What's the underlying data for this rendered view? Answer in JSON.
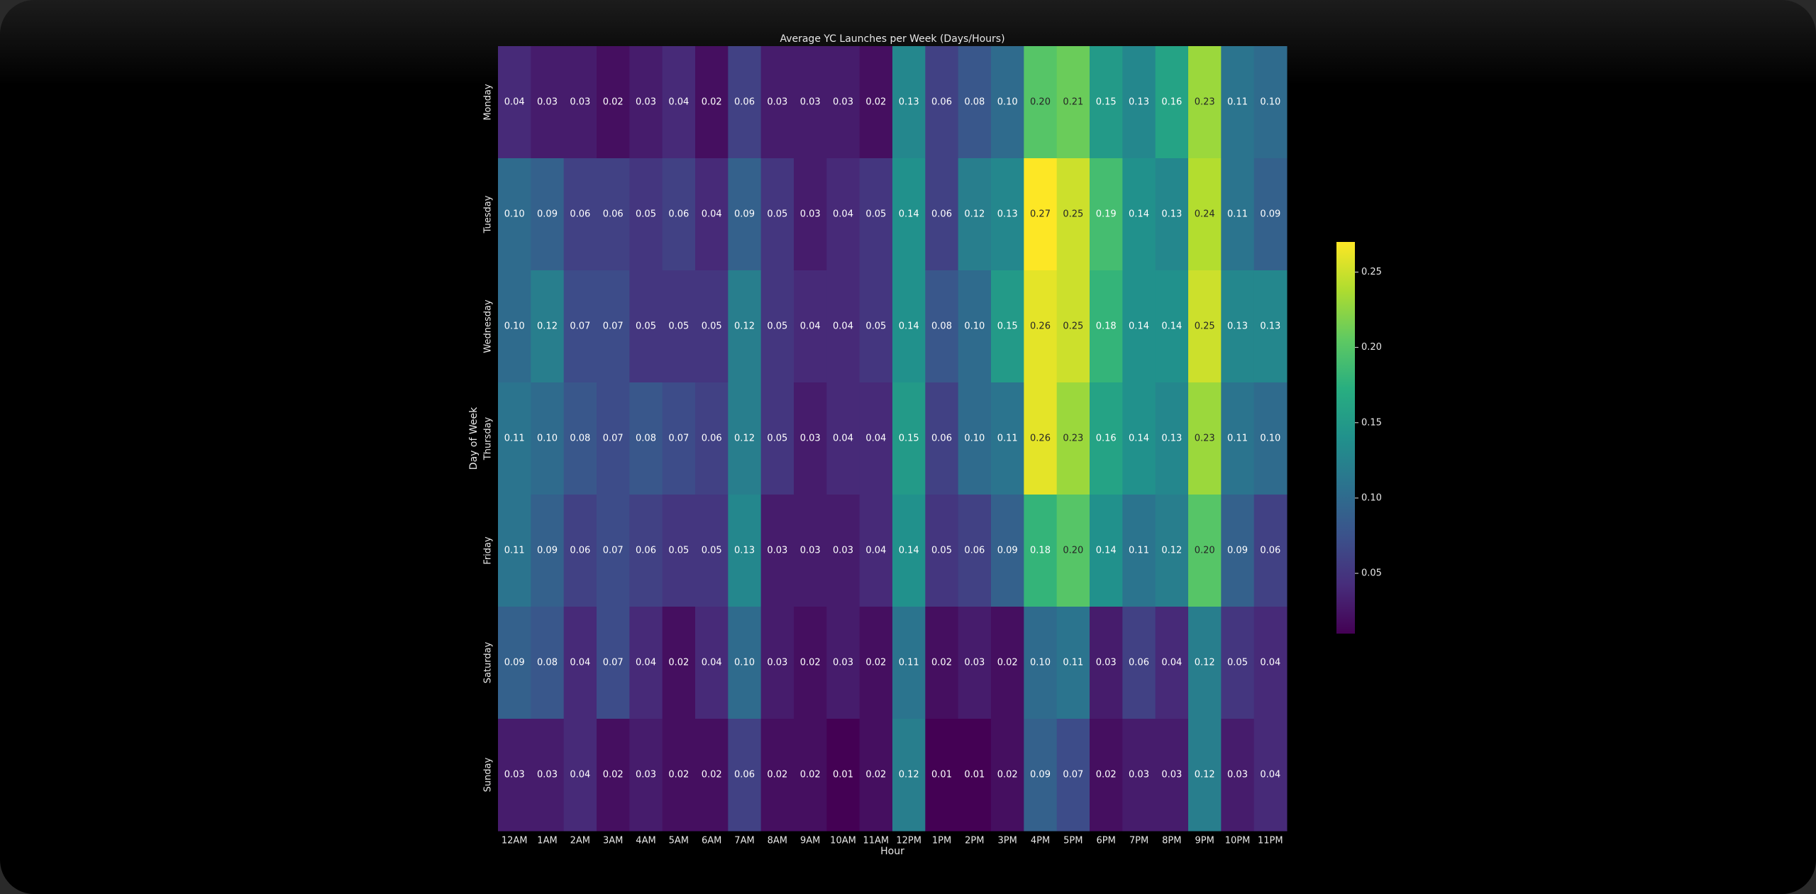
{
  "chart_data": {
    "type": "heatmap",
    "title": "Average YC Launches per Week (Days/Hours)",
    "x_label": "Hour",
    "y_label": "Day of Week",
    "colormap": "viridis",
    "categories": [
      "12AM",
      "1AM",
      "2AM",
      "3AM",
      "4AM",
      "5AM",
      "6AM",
      "7AM",
      "8AM",
      "9AM",
      "10AM",
      "11AM",
      "12PM",
      "1PM",
      "2PM",
      "3PM",
      "4PM",
      "5PM",
      "6PM",
      "7PM",
      "8PM",
      "9PM",
      "10PM",
      "11PM"
    ],
    "rows": [
      "Monday",
      "Tuesday",
      "Wednesday",
      "Thursday",
      "Friday",
      "Saturday",
      "Sunday"
    ],
    "values": [
      [
        0.04,
        0.03,
        0.03,
        0.02,
        0.03,
        0.04,
        0.02,
        0.06,
        0.03,
        0.03,
        0.03,
        0.02,
        0.13,
        0.06,
        0.08,
        0.1,
        0.2,
        0.21,
        0.15,
        0.13,
        0.16,
        0.23,
        0.11,
        0.1
      ],
      [
        0.1,
        0.09,
        0.06,
        0.06,
        0.05,
        0.06,
        0.04,
        0.09,
        0.05,
        0.03,
        0.04,
        0.05,
        0.14,
        0.06,
        0.12,
        0.13,
        0.27,
        0.25,
        0.19,
        0.14,
        0.13,
        0.24,
        0.11,
        0.09
      ],
      [
        0.1,
        0.12,
        0.07,
        0.07,
        0.05,
        0.05,
        0.05,
        0.12,
        0.05,
        0.04,
        0.04,
        0.05,
        0.14,
        0.08,
        0.1,
        0.15,
        0.26,
        0.25,
        0.18,
        0.14,
        0.14,
        0.25,
        0.13,
        0.13
      ],
      [
        0.11,
        0.1,
        0.08,
        0.07,
        0.08,
        0.07,
        0.06,
        0.12,
        0.05,
        0.03,
        0.04,
        0.04,
        0.15,
        0.06,
        0.1,
        0.11,
        0.26,
        0.23,
        0.16,
        0.14,
        0.13,
        0.23,
        0.11,
        0.1
      ],
      [
        0.11,
        0.09,
        0.06,
        0.07,
        0.06,
        0.05,
        0.05,
        0.13,
        0.03,
        0.03,
        0.03,
        0.04,
        0.14,
        0.05,
        0.06,
        0.09,
        0.18,
        0.2,
        0.14,
        0.11,
        0.12,
        0.2,
        0.09,
        0.06
      ],
      [
        0.09,
        0.08,
        0.04,
        0.07,
        0.04,
        0.02,
        0.04,
        0.1,
        0.03,
        0.02,
        0.03,
        0.02,
        0.11,
        0.02,
        0.03,
        0.02,
        0.1,
        0.11,
        0.03,
        0.06,
        0.04,
        0.12,
        0.05,
        0.04
      ],
      [
        0.03,
        0.03,
        0.04,
        0.02,
        0.03,
        0.02,
        0.02,
        0.06,
        0.02,
        0.02,
        0.01,
        0.02,
        0.12,
        0.01,
        0.01,
        0.02,
        0.09,
        0.07,
        0.02,
        0.03,
        0.03,
        0.12,
        0.03,
        0.04
      ]
    ],
    "value_labels": [
      [
        "0.04",
        "0.03",
        "0.03",
        "0.02",
        "0.03",
        "0.04",
        "0.02",
        "0.06",
        "0.03",
        "0.03",
        "0.03",
        "0.02",
        "0.13",
        "0.06",
        "0.08",
        "0.10",
        "0.20",
        "0.21",
        "0.15",
        "0.13",
        "0.16",
        "0.23",
        "0.11",
        "0.10"
      ],
      [
        "0.10",
        "0.09",
        "0.06",
        "0.06",
        "0.05",
        "0.06",
        "0.04",
        "0.09",
        "0.05",
        "0.03",
        "0.04",
        "0.05",
        "0.14",
        "0.06",
        "0.12",
        "0.13",
        "0.27",
        "0.25",
        "0.19",
        "0.14",
        "0.13",
        "0.24",
        "0.11",
        "0.09"
      ],
      [
        "0.10",
        "0.12",
        "0.07",
        "0.07",
        "0.05",
        "0.05",
        "0.05",
        "0.12",
        "0.05",
        "0.04",
        "0.04",
        "0.05",
        "0.14",
        "0.08",
        "0.10",
        "0.15",
        "0.26",
        "0.25",
        "0.18",
        "0.14",
        "0.14",
        "0.25",
        "0.13",
        "0.13"
      ],
      [
        "0.11",
        "0.10",
        "0.08",
        "0.07",
        "0.08",
        "0.07",
        "0.06",
        "0.12",
        "0.05",
        "0.03",
        "0.04",
        "0.04",
        "0.15",
        "0.06",
        "0.10",
        "0.11",
        "0.26",
        "0.23",
        "0.16",
        "0.14",
        "0.13",
        "0.23",
        "0.11",
        "0.10"
      ],
      [
        "0.11",
        "0.09",
        "0.06",
        "0.07",
        "0.06",
        "0.05",
        "0.05",
        "0.13",
        "0.03",
        "0.03",
        "0.03",
        "0.04",
        "0.14",
        "0.05",
        "0.06",
        "0.09",
        "0.18",
        "0.20",
        "0.14",
        "0.11",
        "0.12",
        "0.20",
        "0.09",
        "0.06"
      ],
      [
        "0.09",
        "0.08",
        "0.04",
        "0.07",
        "0.04",
        "0.02",
        "0.04",
        "0.10",
        "0.03",
        "0.02",
        "0.03",
        "0.02",
        "0.11",
        "0.02",
        "0.03",
        "0.02",
        "0.10",
        "0.11",
        "0.03",
        "0.06",
        "0.04",
        "0.12",
        "0.05",
        "0.04"
      ],
      [
        "0.03",
        "0.03",
        "0.04",
        "0.02",
        "0.03",
        "0.02",
        "0.02",
        "0.06",
        "0.02",
        "0.02",
        "0.01",
        "0.02",
        "0.12",
        "0.01",
        "0.01",
        "0.02",
        "0.09",
        "0.07",
        "0.02",
        "0.03",
        "0.03",
        "0.12",
        "0.03",
        "0.04"
      ]
    ],
    "clim": [
      0.01,
      0.27
    ],
    "cticks": [
      0.05,
      {
        "value": 0.1,
        "label": "0.10"
      },
      0.15,
      {
        "value": 0.2,
        "label": "0.20"
      },
      0.25
    ]
  }
}
